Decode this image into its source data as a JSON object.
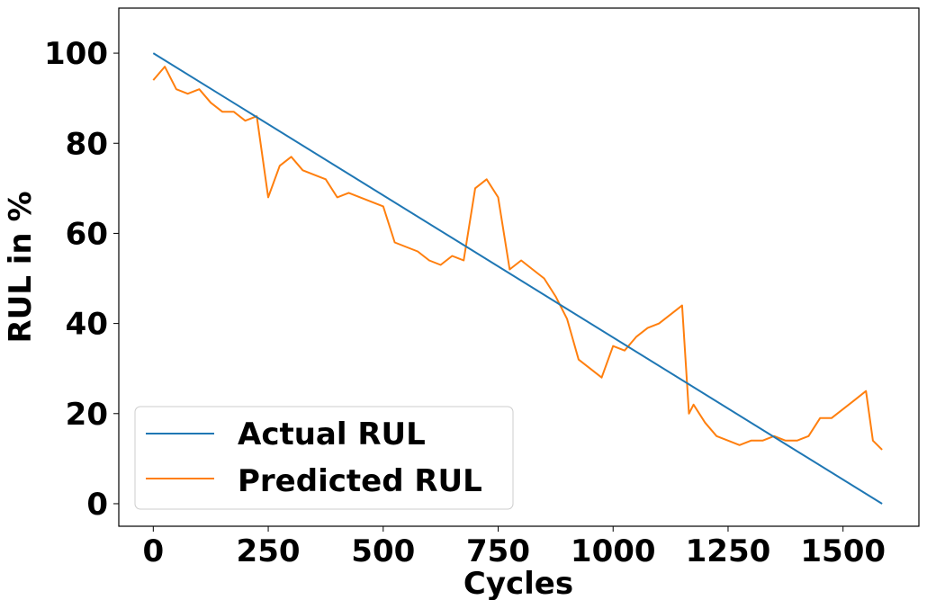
{
  "chart_data": {
    "type": "line",
    "title": "",
    "xlabel": "Cycles",
    "ylabel": "RUL in %",
    "xlim": [
      -75,
      1665
    ],
    "ylim": [
      -5,
      110
    ],
    "xticks": [
      0,
      250,
      500,
      750,
      1000,
      1250,
      1500
    ],
    "yticks": [
      0,
      20,
      40,
      60,
      80,
      100
    ],
    "grid": false,
    "legend": "lower-left",
    "series": [
      {
        "name": "Actual RUL",
        "color": "#1f77b4",
        "x": [
          0,
          1585
        ],
        "y": [
          100,
          0
        ]
      },
      {
        "name": "Predicted RUL",
        "color": "#ff7f0e",
        "x": [
          0,
          25,
          50,
          75,
          100,
          125,
          150,
          175,
          200,
          225,
          250,
          275,
          300,
          325,
          350,
          375,
          400,
          425,
          450,
          475,
          500,
          525,
          550,
          575,
          600,
          625,
          650,
          675,
          700,
          725,
          750,
          775,
          800,
          825,
          850,
          875,
          900,
          925,
          950,
          975,
          1000,
          1025,
          1050,
          1075,
          1100,
          1125,
          1150,
          1165,
          1175,
          1200,
          1225,
          1250,
          1275,
          1300,
          1325,
          1350,
          1375,
          1400,
          1425,
          1450,
          1475,
          1500,
          1525,
          1550,
          1565,
          1585
        ],
        "y": [
          94,
          97,
          92,
          91,
          92,
          89,
          87,
          87,
          85,
          86,
          68,
          75,
          77,
          74,
          73,
          72,
          68,
          69,
          68,
          67,
          66,
          58,
          57,
          56,
          54,
          53,
          55,
          54,
          70,
          72,
          68,
          52,
          54,
          52,
          50,
          46,
          41,
          32,
          30,
          28,
          35,
          34,
          37,
          39,
          40,
          42,
          44,
          20,
          22,
          18,
          15,
          14,
          13,
          14,
          14,
          15,
          14,
          14,
          15,
          19,
          19,
          21,
          23,
          25,
          14,
          12
        ]
      }
    ]
  }
}
